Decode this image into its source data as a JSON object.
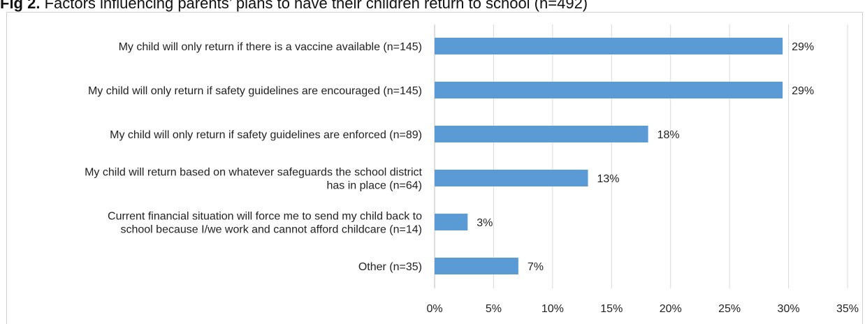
{
  "figure": {
    "title_prefix": "Fig 2.",
    "title_text": " Factors influencing parents’ plans to have their children return to school (n=492)"
  },
  "chart_data": {
    "type": "bar",
    "orientation": "horizontal",
    "categories": [
      [
        "My child will only return if there is a vaccine available (n=145)"
      ],
      [
        "My child will only return if safety guidelines are encouraged (n=145)"
      ],
      [
        "My child will only return if safety guidelines are enforced (n=89)"
      ],
      [
        "My child will return based on whatever safeguards the school district",
        "has in place (n=64)"
      ],
      [
        "Current financial situation will force me to send my child back to",
        "school because I/we work and cannot afford childcare (n=14)"
      ],
      [
        "Other (n=35)"
      ]
    ],
    "values": [
      29.5,
      29.5,
      18.1,
      13.0,
      2.8,
      7.1
    ],
    "data_labels": [
      "29%",
      "29%",
      "18%",
      "13%",
      "3%",
      "7%"
    ],
    "x_ticks": [
      "0%",
      "5%",
      "10%",
      "15%",
      "20%",
      "25%",
      "30%",
      "35%"
    ],
    "xlim": [
      0,
      35
    ],
    "bar_color": "#5b9bd5",
    "grid": true,
    "legend": "none"
  }
}
